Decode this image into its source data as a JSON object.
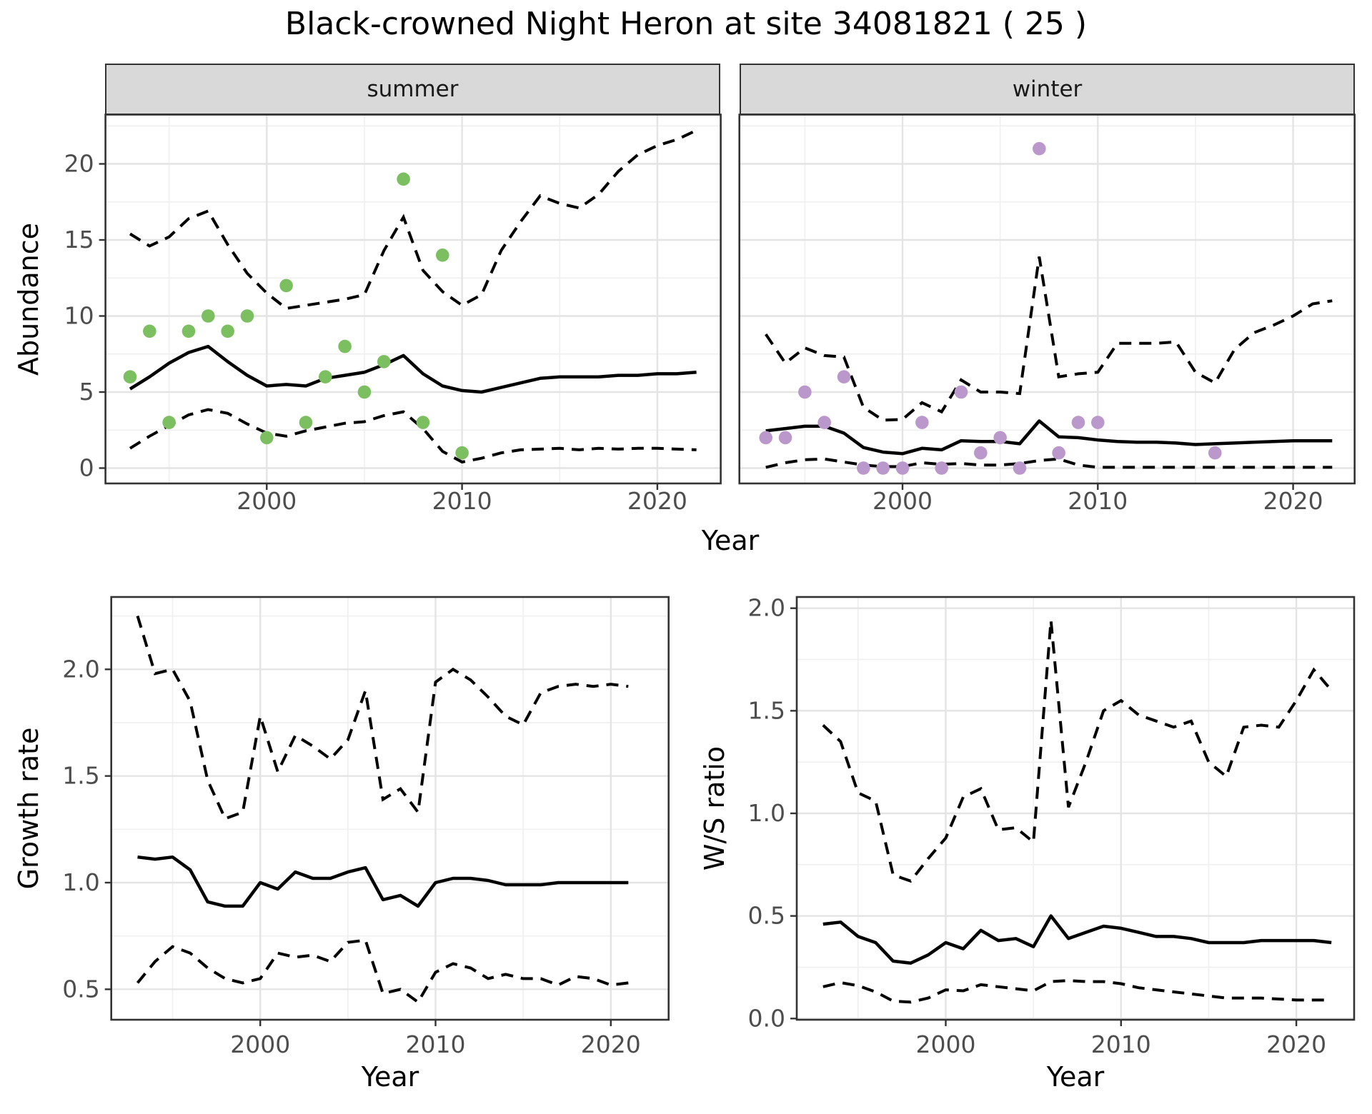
{
  "chart_data": {
    "type": "line",
    "title": "Black-crowned Night Heron at site 34081821 ( 25 )",
    "xlabel_top": "Year",
    "ylabel_top": "Abundance",
    "colors": {
      "line": "#000000",
      "grid_major": "#E4E4E4",
      "grid_minor": "#F0F0F0",
      "panel_border": "#333333",
      "tick_text": "#4D4D4D",
      "summer_points": "#7CBF60",
      "winter_points": "#BB98CB"
    },
    "panels": [
      {
        "id": "abundance_summer",
        "facet": "summer",
        "ylabel": "Abundance",
        "xlabel": "Year",
        "point_color": "#7CBF60",
        "axes": {
          "x": {
            "major": [
              2000,
              2010,
              2020
            ],
            "minor": [
              1995,
              2005,
              2015
            ],
            "labels": [
              "2000",
              "2010",
              "2020"
            ]
          },
          "y": {
            "major": [
              0,
              5,
              10,
              15,
              20
            ],
            "minor": [
              2.5,
              7.5,
              12.5,
              17.5,
              22.5
            ],
            "labels": [
              "0",
              "5",
              "10",
              "15",
              "20"
            ]
          }
        },
        "points": [
          [
            1993,
            6
          ],
          [
            1994,
            9
          ],
          [
            1995,
            3
          ],
          [
            1996,
            9
          ],
          [
            1997,
            10
          ],
          [
            1998,
            9
          ],
          [
            1999,
            10
          ],
          [
            2000,
            2
          ],
          [
            2001,
            12
          ],
          [
            2002,
            3
          ],
          [
            2003,
            6
          ],
          [
            2004,
            8
          ],
          [
            2005,
            5
          ],
          [
            2006,
            7
          ],
          [
            2007,
            19
          ],
          [
            2008,
            3
          ],
          [
            2009,
            14
          ],
          [
            2010,
            1
          ]
        ],
        "mean": {
          "start": 1993,
          "values": [
            5.2,
            6.0,
            6.9,
            7.6,
            8.0,
            7.0,
            6.1,
            5.4,
            5.5,
            5.4,
            5.9,
            6.1,
            6.3,
            6.8,
            7.4,
            6.2,
            5.4,
            5.1,
            5.0,
            5.3,
            5.6,
            5.9,
            6.0,
            6.0,
            6.0,
            6.1,
            6.1,
            6.2,
            6.2,
            6.3
          ]
        },
        "upper": {
          "start": 1993,
          "values": [
            15.4,
            14.6,
            15.2,
            16.4,
            16.9,
            14.7,
            12.8,
            11.5,
            10.5,
            10.7,
            10.9,
            11.1,
            11.4,
            14.3,
            16.5,
            13.0,
            11.6,
            10.7,
            11.4,
            14.3,
            16.2,
            17.9,
            17.4,
            17.1,
            18.0,
            19.5,
            20.6,
            21.2,
            21.6,
            22.2
          ]
        },
        "lower": {
          "start": 1993,
          "values": [
            1.3,
            2.1,
            2.8,
            3.5,
            3.85,
            3.6,
            2.9,
            2.3,
            2.1,
            2.45,
            2.7,
            2.95,
            3.05,
            3.45,
            3.7,
            2.6,
            1.1,
            0.4,
            0.65,
            1.0,
            1.2,
            1.25,
            1.3,
            1.2,
            1.3,
            1.25,
            1.3,
            1.3,
            1.25,
            1.2
          ]
        }
      },
      {
        "id": "abundance_winter",
        "facet": "winter",
        "ylabel": "",
        "xlabel": "Year",
        "point_color": "#BB98CB",
        "axes": {
          "x": {
            "major": [
              2000,
              2010,
              2020
            ],
            "minor": [
              1995,
              2005,
              2015
            ],
            "labels": [
              "2000",
              "2010",
              "2020"
            ]
          },
          "y": {
            "major": [
              0,
              5,
              10,
              15,
              20
            ],
            "minor": [
              2.5,
              7.5,
              12.5,
              17.5,
              22.5
            ],
            "labels": []
          }
        },
        "points": [
          [
            1993,
            2
          ],
          [
            1994,
            2
          ],
          [
            1995,
            5
          ],
          [
            1996,
            3
          ],
          [
            1997,
            6
          ],
          [
            1998,
            0
          ],
          [
            1999,
            0
          ],
          [
            2000,
            0
          ],
          [
            2001,
            3
          ],
          [
            2002,
            0
          ],
          [
            2003,
            5
          ],
          [
            2004,
            1
          ],
          [
            2005,
            2
          ],
          [
            2006,
            0
          ],
          [
            2007,
            21
          ],
          [
            2008,
            1
          ],
          [
            2009,
            3
          ],
          [
            2010,
            3
          ],
          [
            2016,
            1
          ]
        ],
        "mean": {
          "start": 1993,
          "values": [
            2.45,
            2.6,
            2.75,
            2.75,
            2.3,
            1.35,
            1.05,
            0.95,
            1.3,
            1.2,
            1.8,
            1.75,
            1.75,
            1.6,
            3.1,
            2.05,
            2.0,
            1.85,
            1.75,
            1.7,
            1.7,
            1.65,
            1.55,
            1.6,
            1.65,
            1.7,
            1.75,
            1.8,
            1.8,
            1.8
          ]
        },
        "upper": {
          "start": 1993,
          "values": [
            8.8,
            6.9,
            7.9,
            7.4,
            7.3,
            4.0,
            3.15,
            3.2,
            4.3,
            3.7,
            5.8,
            5.0,
            5.0,
            4.9,
            13.9,
            6.0,
            6.2,
            6.3,
            8.2,
            8.2,
            8.2,
            8.3,
            6.3,
            5.6,
            7.8,
            8.9,
            9.4,
            10.0,
            10.8,
            11.0
          ]
        },
        "lower": {
          "start": 1993,
          "values": [
            0.05,
            0.35,
            0.55,
            0.6,
            0.4,
            0.2,
            0.1,
            0.1,
            0.35,
            0.25,
            0.3,
            0.2,
            0.2,
            0.3,
            0.5,
            0.6,
            0.2,
            0.05,
            0.05,
            0.05,
            0.05,
            0.05,
            0.05,
            0.05,
            0.05,
            0.05,
            0.05,
            0.05,
            0.05,
            0.05
          ]
        }
      },
      {
        "id": "growth_rate",
        "facet": "",
        "ylabel": "Growth rate",
        "xlabel": "Year",
        "point_color": "",
        "axes": {
          "x": {
            "major": [
              2000,
              2010,
              2020
            ],
            "minor": [
              1995,
              2005,
              2015
            ],
            "labels": [
              "2000",
              "2010",
              "2020"
            ]
          },
          "y": {
            "major": [
              0.5,
              1.0,
              1.5,
              2.0
            ],
            "minor": [
              0.75,
              1.25,
              1.75,
              2.25
            ],
            "labels": [
              "0.5",
              "1.0",
              "1.5",
              "2.0"
            ]
          }
        },
        "points": [],
        "mean": {
          "start": 1993,
          "values": [
            1.12,
            1.11,
            1.12,
            1.06,
            0.91,
            0.89,
            0.89,
            1.0,
            0.97,
            1.05,
            1.02,
            1.02,
            1.05,
            1.07,
            0.92,
            0.94,
            0.89,
            1.0,
            1.02,
            1.02,
            1.01,
            0.99,
            0.99,
            0.99,
            1.0,
            1.0,
            1.0,
            1.0,
            1.0
          ]
        },
        "upper": {
          "start": 1993,
          "values": [
            2.25,
            1.98,
            2.0,
            1.85,
            1.48,
            1.3,
            1.33,
            1.78,
            1.52,
            1.69,
            1.64,
            1.58,
            1.67,
            1.9,
            1.39,
            1.44,
            1.33,
            1.94,
            2.0,
            1.95,
            1.87,
            1.78,
            1.74,
            1.89,
            1.92,
            1.93,
            1.92,
            1.93,
            1.92
          ]
        },
        "lower": {
          "start": 1993,
          "values": [
            0.53,
            0.63,
            0.7,
            0.67,
            0.6,
            0.55,
            0.53,
            0.55,
            0.67,
            0.65,
            0.66,
            0.63,
            0.72,
            0.73,
            0.48,
            0.5,
            0.44,
            0.58,
            0.62,
            0.6,
            0.55,
            0.57,
            0.55,
            0.55,
            0.52,
            0.56,
            0.55,
            0.52,
            0.53
          ]
        }
      },
      {
        "id": "ws_ratio",
        "facet": "",
        "ylabel": "W/S ratio",
        "xlabel": "Year",
        "point_color": "",
        "axes": {
          "x": {
            "major": [
              2000,
              2010,
              2020
            ],
            "minor": [
              1995,
              2005,
              2015
            ],
            "labels": [
              "2000",
              "2010",
              "2020"
            ]
          },
          "y": {
            "major": [
              0.0,
              0.5,
              1.0,
              1.5,
              2.0
            ],
            "minor": [
              0.25,
              0.75,
              1.25,
              1.75
            ],
            "labels": [
              "0.0",
              "0.5",
              "1.0",
              "1.5",
              "2.0"
            ]
          }
        },
        "points": [],
        "mean": {
          "start": 1993,
          "values": [
            0.46,
            0.47,
            0.4,
            0.37,
            0.28,
            0.27,
            0.31,
            0.37,
            0.34,
            0.43,
            0.38,
            0.39,
            0.35,
            0.5,
            0.39,
            0.42,
            0.45,
            0.44,
            0.42,
            0.4,
            0.4,
            0.39,
            0.37,
            0.37,
            0.37,
            0.38,
            0.38,
            0.38,
            0.38,
            0.37
          ]
        },
        "upper": {
          "start": 1993,
          "values": [
            1.43,
            1.35,
            1.1,
            1.06,
            0.7,
            0.67,
            0.78,
            0.88,
            1.08,
            1.12,
            0.92,
            0.93,
            0.86,
            1.94,
            1.03,
            1.25,
            1.5,
            1.55,
            1.48,
            1.45,
            1.42,
            1.45,
            1.25,
            1.18,
            1.42,
            1.43,
            1.42,
            1.55,
            1.7,
            1.6
          ]
        },
        "lower": {
          "start": 1993,
          "values": [
            0.155,
            0.175,
            0.16,
            0.13,
            0.085,
            0.08,
            0.1,
            0.14,
            0.135,
            0.165,
            0.155,
            0.145,
            0.135,
            0.18,
            0.185,
            0.18,
            0.18,
            0.17,
            0.15,
            0.14,
            0.13,
            0.12,
            0.11,
            0.1,
            0.1,
            0.1,
            0.095,
            0.09,
            0.09,
            0.09
          ]
        }
      }
    ]
  }
}
